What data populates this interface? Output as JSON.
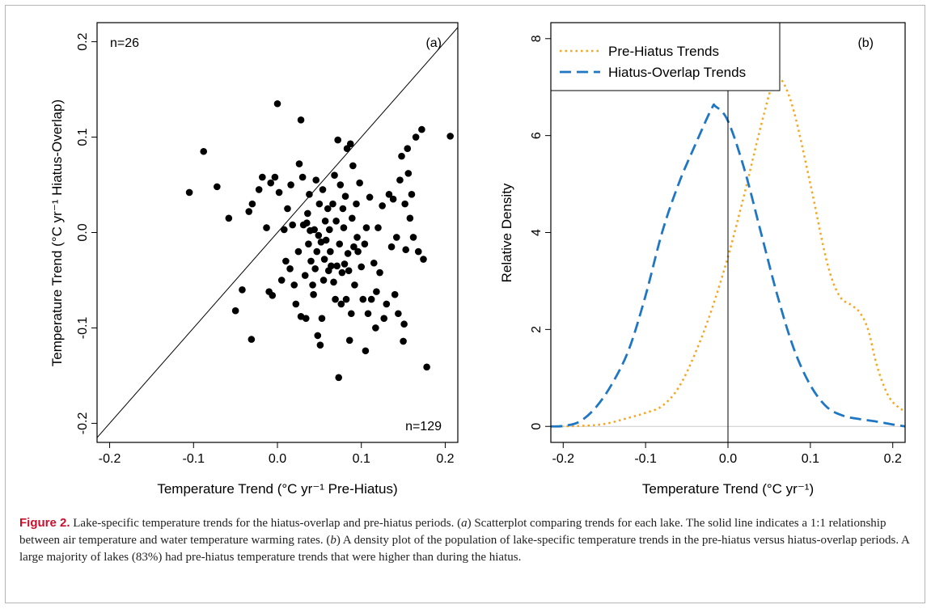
{
  "chart_data": [
    {
      "type": "scatter",
      "panel_label": "(a)",
      "xlabel": "Temperature Trend (°C yr⁻¹ Pre-Hiatus)",
      "ylabel": "Temperature Trend (°C yr⁻¹ Hiatus-Overlap)",
      "xlim": [
        -0.2,
        0.2
      ],
      "ylim": [
        -0.2,
        0.2
      ],
      "x_ticks": [
        "-0.2",
        "-0.1",
        "0.0",
        "0.1",
        "0.2"
      ],
      "y_ticks": [
        "-0.2",
        "-0.1",
        "0.0",
        "0.1",
        "0.2"
      ],
      "annotations": {
        "top_left": "n=26",
        "bottom_right": "n=129"
      },
      "reference_line": "1:1",
      "points": [
        [
          -0.105,
          0.042
        ],
        [
          -0.088,
          0.085
        ],
        [
          -0.072,
          0.048
        ],
        [
          -0.058,
          0.015
        ],
        [
          -0.05,
          -0.082
        ],
        [
          -0.042,
          -0.06
        ],
        [
          -0.034,
          0.022
        ],
        [
          -0.031,
          -0.112
        ],
        [
          -0.03,
          0.03
        ],
        [
          -0.022,
          0.045
        ],
        [
          -0.018,
          0.058
        ],
        [
          -0.013,
          0.005
        ],
        [
          -0.01,
          -0.062
        ],
        [
          -0.008,
          0.052
        ],
        [
          -0.006,
          -0.066
        ],
        [
          -0.003,
          0.058
        ],
        [
          0.0,
          0.135
        ],
        [
          0.002,
          0.042
        ],
        [
          0.005,
          -0.05
        ],
        [
          0.008,
          0.003
        ],
        [
          0.01,
          -0.03
        ],
        [
          0.012,
          0.025
        ],
        [
          0.015,
          -0.038
        ],
        [
          0.016,
          0.05
        ],
        [
          0.018,
          0.008
        ],
        [
          0.02,
          -0.055
        ],
        [
          0.022,
          -0.075
        ],
        [
          0.025,
          -0.02
        ],
        [
          0.026,
          0.072
        ],
        [
          0.028,
          0.118
        ],
        [
          0.028,
          -0.088
        ],
        [
          0.03,
          0.058
        ],
        [
          0.031,
          0.008
        ],
        [
          0.033,
          -0.045
        ],
        [
          0.034,
          -0.09
        ],
        [
          0.035,
          0.01
        ],
        [
          0.036,
          0.02
        ],
        [
          0.037,
          -0.012
        ],
        [
          0.038,
          0.04
        ],
        [
          0.039,
          0.002
        ],
        [
          0.04,
          -0.03
        ],
        [
          0.042,
          -0.055
        ],
        [
          0.043,
          -0.065
        ],
        [
          0.044,
          0.003
        ],
        [
          0.045,
          -0.038
        ],
        [
          0.046,
          0.055
        ],
        [
          0.047,
          -0.02
        ],
        [
          0.048,
          -0.108
        ],
        [
          0.049,
          -0.003
        ],
        [
          0.05,
          0.03
        ],
        [
          0.051,
          -0.118
        ],
        [
          0.052,
          -0.01
        ],
        [
          0.053,
          -0.09
        ],
        [
          0.054,
          0.045
        ],
        [
          0.055,
          -0.05
        ],
        [
          0.056,
          -0.028
        ],
        [
          0.057,
          0.012
        ],
        [
          0.058,
          -0.008
        ],
        [
          0.06,
          0.025
        ],
        [
          0.061,
          -0.04
        ],
        [
          0.062,
          0.003
        ],
        [
          0.063,
          -0.02
        ],
        [
          0.064,
          -0.035
        ],
        [
          0.066,
          0.03
        ],
        [
          0.067,
          -0.052
        ],
        [
          0.068,
          0.06
        ],
        [
          0.069,
          -0.07
        ],
        [
          0.07,
          0.012
        ],
        [
          0.071,
          -0.035
        ],
        [
          0.072,
          0.097
        ],
        [
          0.073,
          -0.152
        ],
        [
          0.074,
          -0.012
        ],
        [
          0.075,
          0.05
        ],
        [
          0.076,
          -0.075
        ],
        [
          0.077,
          -0.042
        ],
        [
          0.078,
          0.025
        ],
        [
          0.079,
          0.005
        ],
        [
          0.08,
          -0.033
        ],
        [
          0.081,
          0.038
        ],
        [
          0.082,
          -0.07
        ],
        [
          0.083,
          0.088
        ],
        [
          0.084,
          -0.022
        ],
        [
          0.085,
          -0.04
        ],
        [
          0.086,
          -0.113
        ],
        [
          0.087,
          0.093
        ],
        [
          0.088,
          -0.085
        ],
        [
          0.089,
          0.015
        ],
        [
          0.09,
          0.07
        ],
        [
          0.091,
          -0.015
        ],
        [
          0.092,
          -0.055
        ],
        [
          0.094,
          0.03
        ],
        [
          0.095,
          -0.005
        ],
        [
          0.096,
          -0.02
        ],
        [
          0.098,
          0.052
        ],
        [
          0.1,
          -0.036
        ],
        [
          0.102,
          -0.07
        ],
        [
          0.104,
          -0.012
        ],
        [
          0.105,
          -0.124
        ],
        [
          0.106,
          0.005
        ],
        [
          0.108,
          -0.085
        ],
        [
          0.11,
          0.037
        ],
        [
          0.112,
          -0.07
        ],
        [
          0.115,
          -0.032
        ],
        [
          0.117,
          -0.1
        ],
        [
          0.118,
          -0.062
        ],
        [
          0.12,
          0.005
        ],
        [
          0.122,
          -0.042
        ],
        [
          0.125,
          0.028
        ],
        [
          0.127,
          -0.09
        ],
        [
          0.13,
          -0.075
        ],
        [
          0.133,
          0.04
        ],
        [
          0.136,
          -0.015
        ],
        [
          0.138,
          0.035
        ],
        [
          0.14,
          -0.065
        ],
        [
          0.142,
          -0.005
        ],
        [
          0.144,
          -0.085
        ],
        [
          0.146,
          0.055
        ],
        [
          0.148,
          0.08
        ],
        [
          0.15,
          -0.114
        ],
        [
          0.151,
          -0.096
        ],
        [
          0.152,
          0.03
        ],
        [
          0.153,
          -0.018
        ],
        [
          0.155,
          0.088
        ],
        [
          0.156,
          0.062
        ],
        [
          0.158,
          0.015
        ],
        [
          0.16,
          0.04
        ],
        [
          0.162,
          -0.005
        ],
        [
          0.165,
          0.1
        ],
        [
          0.168,
          -0.02
        ],
        [
          0.172,
          0.108
        ],
        [
          0.174,
          -0.028
        ],
        [
          0.178,
          -0.141
        ],
        [
          0.206,
          0.101
        ]
      ]
    },
    {
      "type": "line",
      "panel_label": "(b)",
      "xlabel": "Temperature Trend (°C yr⁻¹)",
      "ylabel": "Relative Density",
      "xlim": [
        -0.215,
        0.215
      ],
      "ylim": [
        0,
        8
      ],
      "x_ticks": [
        "-0.2",
        "-0.1",
        "0.0",
        "0.1",
        "0.2"
      ],
      "y_ticks": [
        "0",
        "2",
        "4",
        "6",
        "8"
      ],
      "vertical_line_at": 0,
      "legend_position": "top-left",
      "series": [
        {
          "name": "Pre-Hiatus Trends",
          "color": "#f5a623",
          "style": "dotted",
          "points": [
            [
              -0.215,
              0.0
            ],
            [
              -0.18,
              0.01
            ],
            [
              -0.15,
              0.05
            ],
            [
              -0.12,
              0.18
            ],
            [
              -0.1,
              0.28
            ],
            [
              -0.08,
              0.42
            ],
            [
              -0.06,
              0.8
            ],
            [
              -0.04,
              1.5
            ],
            [
              -0.02,
              2.4
            ],
            [
              0.0,
              3.5
            ],
            [
              0.02,
              4.8
            ],
            [
              0.04,
              6.2
            ],
            [
              0.055,
              7.1
            ],
            [
              0.065,
              7.15
            ],
            [
              0.08,
              6.5
            ],
            [
              0.1,
              5.0
            ],
            [
              0.12,
              3.4
            ],
            [
              0.135,
              2.7
            ],
            [
              0.15,
              2.5
            ],
            [
              0.16,
              2.35
            ],
            [
              0.17,
              2.0
            ],
            [
              0.18,
              1.3
            ],
            [
              0.19,
              0.8
            ],
            [
              0.2,
              0.5
            ],
            [
              0.215,
              0.3
            ]
          ]
        },
        {
          "name": "Hiatus-Overlap Trends",
          "color": "#1f77c4",
          "style": "dashed",
          "points": [
            [
              -0.215,
              0.0
            ],
            [
              -0.2,
              0.01
            ],
            [
              -0.18,
              0.1
            ],
            [
              -0.16,
              0.4
            ],
            [
              -0.14,
              0.9
            ],
            [
              -0.12,
              1.6
            ],
            [
              -0.1,
              2.7
            ],
            [
              -0.08,
              4.0
            ],
            [
              -0.06,
              5.0
            ],
            [
              -0.04,
              5.8
            ],
            [
              -0.02,
              6.55
            ],
            [
              -0.015,
              6.6
            ],
            [
              0.0,
              6.3
            ],
            [
              0.02,
              5.3
            ],
            [
              0.04,
              4.0
            ],
            [
              0.06,
              2.7
            ],
            [
              0.08,
              1.6
            ],
            [
              0.1,
              0.85
            ],
            [
              0.12,
              0.4
            ],
            [
              0.14,
              0.22
            ],
            [
              0.16,
              0.15
            ],
            [
              0.18,
              0.1
            ],
            [
              0.2,
              0.04
            ],
            [
              0.215,
              0.0
            ]
          ]
        }
      ]
    }
  ],
  "caption": {
    "label": "Figure 2.",
    "parts": [
      " Lake-specific temperature trends for the hiatus-overlap and pre-hiatus periods. (",
      "a",
      ") Scatterplot comparing trends for each lake. The solid line indicates a 1:1 relationship between air temperature and water temperature warming rates. (",
      "b",
      ") A density plot of the population of lake-specific temperature trends in the pre-hiatus versus hiatus-overlap periods. A large majority of lakes (83%) had pre-hiatus temperature trends that were higher than during the hiatus."
    ]
  }
}
